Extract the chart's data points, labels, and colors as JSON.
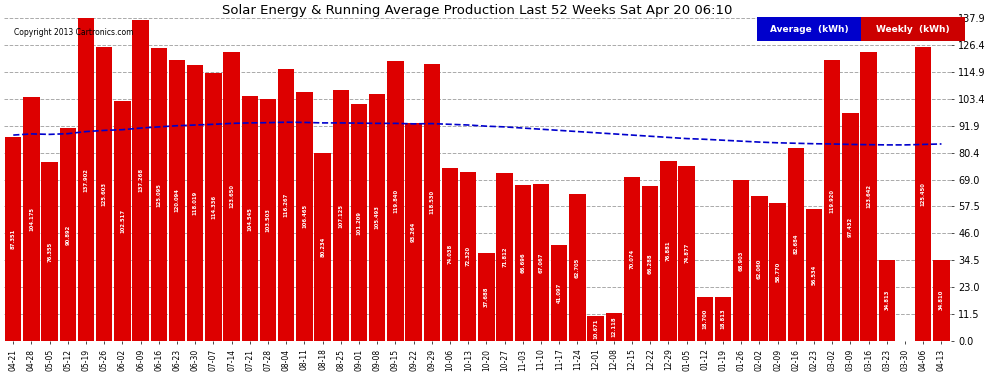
{
  "title": "Solar Energy & Running Average Production Last 52 Weeks Sat Apr 20 06:10",
  "copyright": "Copyright 2013 Cartronics.com",
  "categories": [
    "04-21",
    "04-28",
    "05-05",
    "05-12",
    "05-19",
    "05-26",
    "06-02",
    "06-09",
    "06-16",
    "06-23",
    "06-30",
    "07-07",
    "07-14",
    "07-21",
    "07-28",
    "08-04",
    "08-11",
    "08-18",
    "08-25",
    "09-01",
    "09-08",
    "09-15",
    "09-22",
    "09-29",
    "10-06",
    "10-13",
    "10-20",
    "10-27",
    "11-03",
    "11-10",
    "11-17",
    "11-24",
    "12-01",
    "12-08",
    "12-15",
    "12-22",
    "12-29",
    "01-05",
    "01-12",
    "01-19",
    "01-26",
    "02-02",
    "02-09",
    "02-16",
    "02-23",
    "03-02",
    "03-09",
    "03-16",
    "03-23",
    "03-30",
    "04-06",
    "04-13"
  ],
  "weekly_values": [
    87.351,
    104.175,
    76.355,
    90.892,
    137.902,
    125.603,
    102.517,
    137.268,
    125.095,
    120.094,
    118.019,
    114.336,
    123.65,
    104.545,
    103.503,
    116.267,
    106.465,
    80.234,
    107.125,
    101.209,
    105.493,
    119.84,
    93.264,
    118.53,
    74.038,
    72.32,
    37.688,
    71.812,
    66.696,
    67.067,
    41.097,
    62.705,
    10.671,
    12.118,
    70.074,
    66.288,
    76.881,
    74.877,
    18.7,
    18.813,
    68.903,
    62.06,
    58.77,
    82.684,
    56.534,
    119.92,
    97.432,
    123.642,
    34.813,
    0.0,
    125.45,
    34.81
  ],
  "avg_values": [
    88.0,
    88.5,
    88.3,
    88.6,
    89.5,
    90.0,
    90.3,
    91.0,
    91.5,
    92.0,
    92.3,
    92.6,
    93.0,
    93.2,
    93.3,
    93.5,
    93.4,
    93.2,
    93.2,
    93.1,
    93.0,
    93.0,
    92.8,
    92.9,
    92.6,
    92.3,
    91.8,
    91.5,
    91.0,
    90.5,
    90.0,
    89.5,
    89.0,
    88.5,
    88.0,
    87.5,
    87.0,
    86.5,
    86.2,
    85.8,
    85.4,
    85.0,
    84.7,
    84.5,
    84.3,
    84.2,
    84.0,
    83.9,
    83.8,
    83.8,
    84.0,
    84.2
  ],
  "bar_color": "#dd0000",
  "avg_line_color": "#0000cc",
  "background_color": "#ffffff",
  "plot_bg_color": "#ffffff",
  "grid_color": "#aaaaaa",
  "ytick_labels": [
    "0.0",
    "11.5",
    "23.0",
    "34.5",
    "46.0",
    "57.5",
    "69.0",
    "80.4",
    "91.9",
    "103.4",
    "114.9",
    "126.4",
    "137.9"
  ],
  "ytick_values": [
    0.0,
    11.5,
    23.0,
    34.5,
    46.0,
    57.5,
    69.0,
    80.4,
    91.9,
    103.4,
    114.9,
    126.4,
    137.9
  ],
  "legend_avg_label": "Average  (kWh)",
  "legend_weekly_label": "Weekly  (kWh)",
  "legend_avg_bg": "#0000cc",
  "legend_weekly_bg": "#cc0000"
}
